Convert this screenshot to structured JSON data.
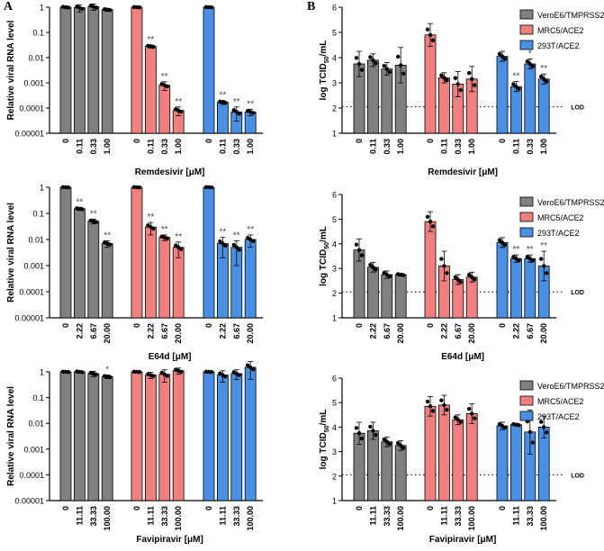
{
  "panel_labels": [
    "A",
    "B"
  ],
  "colors": {
    "gray": "#808080",
    "red": "#f08080",
    "blue": "#4a90e2"
  },
  "lod_label": "LOD",
  "legend": [
    {
      "name": "VeroE6/TMPRSS2",
      "color": "#808080"
    },
    {
      "name": "MRC5/ACE2",
      "color": "#f08080"
    },
    {
      "name": "293T/ACE2",
      "color": "#4a90e2"
    }
  ],
  "chart_data": [
    {
      "id": "A1",
      "type": "bar",
      "scale": "log",
      "ylabel": "Relative viral RNA level",
      "xlabel": "Remdesivir [μM]",
      "yticks": [
        "1",
        "0.1",
        "0.01",
        "0.001",
        "0.0001",
        "0.00001"
      ],
      "ylim": [
        1e-05,
        1
      ],
      "categories": [
        "0",
        "0.11",
        "0.33",
        "1.00"
      ],
      "series": [
        {
          "name": "VeroE6/TMPRSS2",
          "values": [
            1,
            0.95,
            1.05,
            0.8
          ],
          "err": [
            0.1,
            0.3,
            0.3,
            0.1
          ],
          "stars": [
            "",
            "",
            "",
            ""
          ]
        },
        {
          "name": "MRC5/ACE2",
          "values": [
            1,
            0.028,
            0.0008,
            8e-05
          ],
          "err": [
            0.05,
            0.004,
            0.0003,
            3e-05
          ],
          "stars": [
            "",
            "**",
            "**",
            "**"
          ]
        },
        {
          "name": "293T/ACE2",
          "values": [
            1,
            0.00017,
            7e-05,
            7e-05
          ],
          "err": [
            0.05,
            3e-05,
            4e-05,
            2e-05
          ],
          "stars": [
            "",
            "**",
            "**",
            "**"
          ]
        }
      ]
    },
    {
      "id": "B1",
      "type": "bar",
      "scale": "linear",
      "ylabel": "log TCID50/mL",
      "xlabel": "Remdesivir [μM]",
      "yticks": [
        "1",
        "2",
        "3",
        "4",
        "5",
        "6"
      ],
      "ylim": [
        1,
        6
      ],
      "lod": 2.05,
      "categories": [
        "0",
        "0.11",
        "0.33",
        "1.00"
      ],
      "series": [
        {
          "name": "VeroE6/TMPRSS2",
          "values": [
            3.75,
            3.9,
            3.55,
            3.7
          ],
          "err": [
            0.5,
            0.25,
            0.25,
            0.7
          ],
          "stars": [
            "",
            "",
            "",
            ""
          ]
        },
        {
          "name": "MRC5/ACE2",
          "values": [
            4.9,
            3.2,
            2.95,
            3.15
          ],
          "err": [
            0.45,
            0.2,
            0.5,
            0.5
          ],
          "stars": [
            "",
            "",
            "",
            ""
          ]
        },
        {
          "name": "293T/ACE2",
          "values": [
            4.05,
            2.85,
            3.75,
            3.15
          ],
          "err": [
            0.2,
            0.2,
            0.2,
            0.2
          ],
          "stars": [
            "",
            "**",
            "*",
            "**"
          ]
        }
      ]
    },
    {
      "id": "A2",
      "type": "bar",
      "scale": "log",
      "ylabel": "Relative viral RNA level",
      "xlabel": "E64d [μM]",
      "yticks": [
        "1",
        "0.1",
        "0.01",
        "0.001",
        "0.0001",
        "0.00001"
      ],
      "ylim": [
        1e-05,
        1
      ],
      "categories": [
        "0",
        "2.22",
        "6.67",
        "20.00"
      ],
      "series": [
        {
          "name": "VeroE6/TMPRSS2",
          "values": [
            1,
            0.15,
            0.05,
            0.007
          ],
          "err": [
            0.05,
            0.02,
            0.01,
            0.002
          ],
          "stars": [
            "",
            "**",
            "**",
            "**"
          ]
        },
        {
          "name": "MRC5/ACE2",
          "values": [
            1,
            0.03,
            0.012,
            0.005
          ],
          "err": [
            0.05,
            0.015,
            0.003,
            0.003
          ],
          "stars": [
            "",
            "**",
            "**",
            "**"
          ]
        },
        {
          "name": "293T/ACE2",
          "values": [
            1,
            0.007,
            0.005,
            0.01
          ],
          "err": [
            0.05,
            0.005,
            0.004,
            0.005
          ],
          "stars": [
            "",
            "**",
            "**",
            "**"
          ]
        }
      ]
    },
    {
      "id": "B2",
      "type": "bar",
      "scale": "linear",
      "ylabel": "log TCID50/mL",
      "xlabel": "E64d [μM]",
      "yticks": [
        "1",
        "2",
        "3",
        "4",
        "5",
        "6"
      ],
      "ylim": [
        1,
        6
      ],
      "lod": 2.05,
      "categories": [
        "0",
        "2.22",
        "6.67",
        "20.00"
      ],
      "series": [
        {
          "name": "VeroE6/TMPRSS2",
          "values": [
            3.75,
            3.05,
            2.75,
            2.75
          ],
          "err": [
            0.45,
            0.2,
            0.15,
            0.05
          ],
          "stars": [
            "",
            "",
            "",
            ""
          ]
        },
        {
          "name": "MRC5/ACE2",
          "values": [
            4.9,
            3.1,
            2.55,
            2.65
          ],
          "err": [
            0.4,
            0.6,
            0.2,
            0.2
          ],
          "stars": [
            "",
            "",
            "",
            ""
          ]
        },
        {
          "name": "293T/ACE2",
          "values": [
            4.05,
            3.4,
            3.4,
            3.1
          ],
          "err": [
            0.2,
            0.15,
            0.15,
            0.6
          ],
          "stars": [
            "",
            "**",
            "**",
            "**"
          ]
        }
      ]
    },
    {
      "id": "A3",
      "type": "bar",
      "scale": "log",
      "ylabel": "Relative viral RNA level",
      "xlabel": "Favipiravir [μM]",
      "yticks": [
        "1",
        "0.1",
        "0.01",
        "0.001",
        "0.0001",
        "0.00001"
      ],
      "ylim": [
        1e-05,
        1
      ],
      "categories": [
        "0",
        "11.11",
        "33.33",
        "100.00"
      ],
      "series": [
        {
          "name": "VeroE6/TMPRSS2",
          "values": [
            1,
            1,
            0.85,
            0.65
          ],
          "err": [
            0.05,
            0.1,
            0.2,
            0.1
          ],
          "stars": [
            "",
            "",
            "",
            "*"
          ]
        },
        {
          "name": "MRC5/ACE2",
          "values": [
            1,
            0.75,
            0.8,
            1.1
          ],
          "err": [
            0.05,
            0.2,
            0.4,
            0.3
          ],
          "stars": [
            "",
            "",
            "",
            ""
          ]
        },
        {
          "name": "293T/ACE2",
          "values": [
            1,
            0.75,
            0.85,
            1.5
          ],
          "err": [
            0.05,
            0.35,
            0.35,
            1.0
          ],
          "stars": [
            "",
            "",
            "",
            ""
          ]
        }
      ]
    },
    {
      "id": "B3",
      "type": "bar",
      "scale": "linear",
      "ylabel": "log TCID50/mL",
      "xlabel": "Favipiravir [μM]",
      "yticks": [
        "1",
        "2",
        "3",
        "4",
        "5",
        "6"
      ],
      "ylim": [
        1,
        6
      ],
      "lod": 2.05,
      "categories": [
        "0",
        "11.11",
        "33.33",
        "100.00"
      ],
      "series": [
        {
          "name": "VeroE6/TMPRSS2",
          "values": [
            3.75,
            3.85,
            3.4,
            3.25
          ],
          "err": [
            0.45,
            0.35,
            0.2,
            0.2
          ],
          "stars": [
            "",
            "",
            "",
            ""
          ]
        },
        {
          "name": "MRC5/ACE2",
          "values": [
            4.85,
            4.9,
            4.3,
            4.55
          ],
          "err": [
            0.4,
            0.4,
            0.2,
            0.4
          ],
          "stars": [
            "",
            "",
            "",
            ""
          ]
        },
        {
          "name": "293T/ACE2",
          "values": [
            4.05,
            4.1,
            3.8,
            4.0
          ],
          "err": [
            0.15,
            0.05,
            0.9,
            0.45
          ],
          "stars": [
            "",
            "",
            "",
            ""
          ]
        }
      ]
    }
  ]
}
